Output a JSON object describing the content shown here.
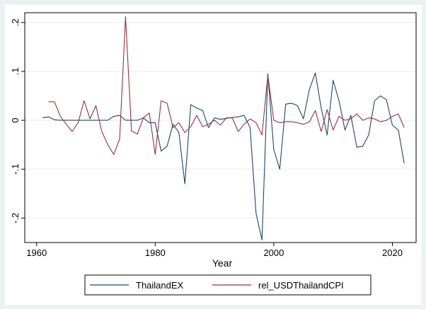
{
  "chart_data": {
    "type": "line",
    "title": "",
    "xlabel": "Year",
    "ylabel": "",
    "xlim": [
      1958,
      2024
    ],
    "ylim": [
      -0.25,
      0.22
    ],
    "x_ticks": [
      1960,
      1980,
      2000,
      2020
    ],
    "x_tick_labels": [
      "1960",
      "1980",
      "2000",
      "2020"
    ],
    "y_ticks": [
      -0.2,
      -0.1,
      0,
      0.1,
      0.2
    ],
    "y_tick_labels": [
      "-.2",
      "-.1",
      "0",
      ".1",
      ".2"
    ],
    "grid": "horizontal",
    "legend_position": "bottom",
    "series": [
      {
        "name": "ThailandEX",
        "color": "#1a476f",
        "x": [
          1961,
          1962,
          1963,
          1964,
          1965,
          1966,
          1967,
          1968,
          1969,
          1970,
          1971,
          1972,
          1973,
          1974,
          1975,
          1976,
          1977,
          1978,
          1979,
          1980,
          1981,
          1982,
          1983,
          1984,
          1985,
          1986,
          1987,
          1988,
          1989,
          1990,
          1991,
          1992,
          1993,
          1994,
          1995,
          1996,
          1997,
          1998,
          1999,
          2000,
          2001,
          2002,
          2003,
          2004,
          2005,
          2006,
          2007,
          2008,
          2009,
          2010,
          2011,
          2012,
          2013,
          2014,
          2015,
          2016,
          2017,
          2018,
          2019,
          2020,
          2021,
          2022
        ],
        "values": [
          0.005,
          0.007,
          0.001,
          0,
          0,
          0,
          0,
          0,
          0,
          0,
          0,
          0,
          0.008,
          0.01,
          0,
          0,
          0,
          0.005,
          -0.005,
          -0.005,
          -0.063,
          -0.053,
          -0.008,
          -0.025,
          -0.13,
          0.032,
          0.025,
          0.02,
          -0.015,
          0.005,
          0.002,
          0.004,
          0.006,
          0.007,
          0.01,
          -0.015,
          -0.19,
          -0.245,
          0.095,
          -0.06,
          -0.1,
          0.033,
          0.035,
          0.03,
          0.003,
          0.063,
          0.097,
          0.025,
          -0.03,
          0.082,
          0.04,
          -0.02,
          0.01,
          -0.055,
          -0.053,
          -0.03,
          0.04,
          0.05,
          0.042,
          -0.01,
          -0.02,
          -0.088
        ]
      },
      {
        "name": "rel_USDThailandCPI",
        "color": "#90353b",
        "x": [
          1962,
          1963,
          1964,
          1965,
          1966,
          1967,
          1968,
          1969,
          1970,
          1971,
          1972,
          1973,
          1974,
          1975,
          1976,
          1977,
          1978,
          1979,
          1980,
          1981,
          1982,
          1983,
          1984,
          1985,
          1986,
          1987,
          1988,
          1989,
          1990,
          1991,
          1992,
          1993,
          1994,
          1995,
          1996,
          1997,
          1998,
          1999,
          2000,
          2001,
          2002,
          2003,
          2004,
          2005,
          2006,
          2007,
          2008,
          2009,
          2010,
          2011,
          2012,
          2013,
          2014,
          2015,
          2016,
          2017,
          2018,
          2019,
          2020,
          2021,
          2022
        ],
        "values": [
          0.038,
          0.038,
          0.008,
          -0.008,
          -0.023,
          -0.005,
          0.04,
          0.003,
          0.03,
          -0.023,
          -0.05,
          -0.07,
          -0.038,
          0.212,
          -0.022,
          -0.028,
          0.005,
          0.015,
          -0.07,
          0.04,
          0.035,
          -0.015,
          -0.005,
          -0.025,
          -0.013,
          0.01,
          -0.013,
          -0.008,
          0,
          -0.01,
          0.005,
          0.005,
          -0.023,
          -0.008,
          0.003,
          -0.005,
          -0.03,
          0.092,
          0,
          -0.005,
          -0.003,
          -0.003,
          -0.005,
          -0.008,
          -0.003,
          0.02,
          -0.023,
          0.022,
          -0.02,
          0.008,
          0,
          0.003,
          0.013,
          0,
          0.005,
          0.003,
          -0.003,
          0,
          0.008,
          0.013,
          -0.015
        ]
      }
    ]
  }
}
